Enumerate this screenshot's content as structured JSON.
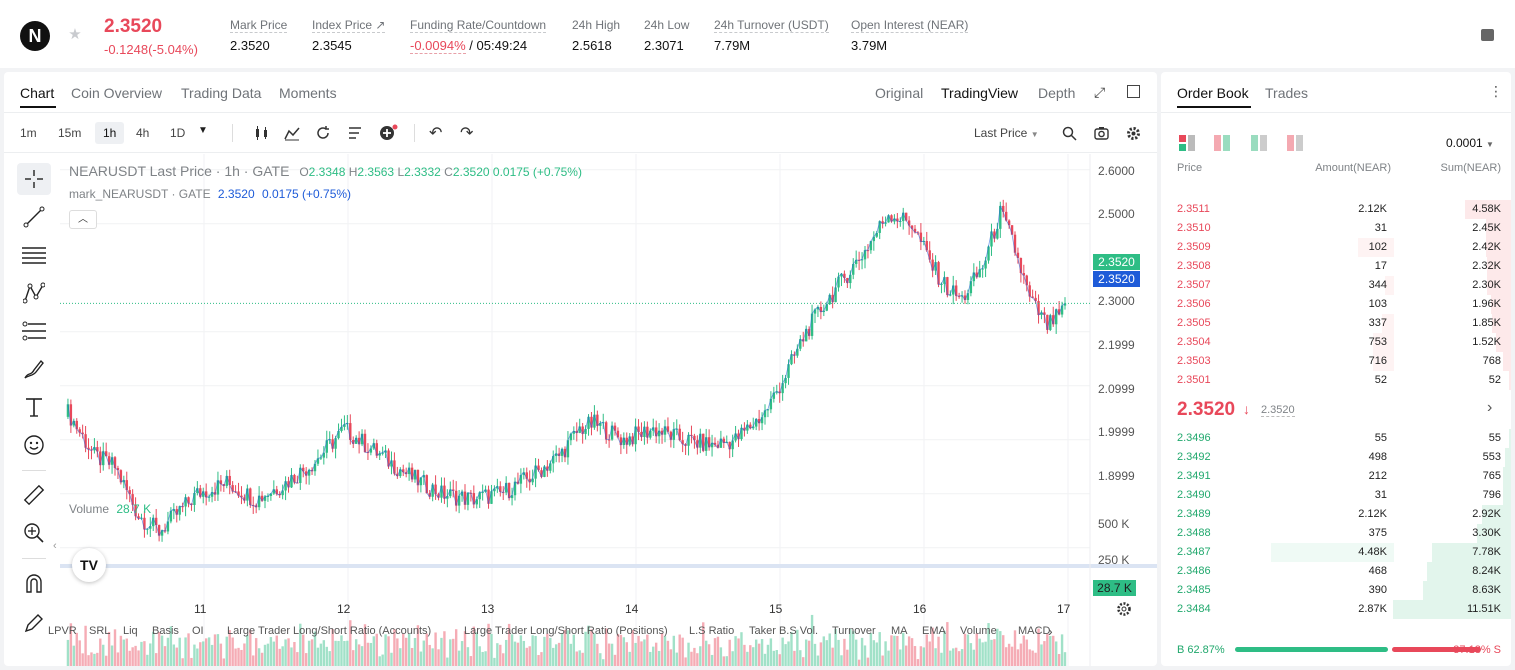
{
  "header": {
    "symbol_logo": "N",
    "last_price": "2.3520",
    "change": "-0.1248(-5.04%)",
    "stats": [
      {
        "label": "Mark Price",
        "value": "2.3520"
      },
      {
        "label": "Index Price ↗",
        "value": "2.3545"
      },
      {
        "label": "Funding Rate/Countdown",
        "value_red": "-0.0094%",
        "value": " / 05:49:24"
      },
      {
        "label": "24h High",
        "value": "2.5618"
      },
      {
        "label": "24h Low",
        "value": "2.3071"
      },
      {
        "label": "24h Turnover (USDT)",
        "value": "7.79M"
      },
      {
        "label": "Open Interest (NEAR)",
        "value": "3.79M"
      }
    ]
  },
  "chart_panel": {
    "tabs": [
      "Chart",
      "Coin Overview",
      "Trading Data",
      "Moments"
    ],
    "views": [
      "Original",
      "TradingView",
      "Depth"
    ],
    "timeframes": [
      "1m",
      "15m",
      "1h",
      "4h",
      "1D"
    ],
    "price_type": "Last Price",
    "legend_main": {
      "title": "NEARUSDT Last Price · 1h · GATE",
      "o_label": "O",
      "o": "2.3348",
      "h_label": "H",
      "h": "2.3563",
      "l_label": "L",
      "l": "2.3332",
      "c_label": "C",
      "c": "2.3520",
      "chg": "0.0175 (+0.75%)"
    },
    "legend_mark": {
      "title": "mark_NEARUSDT · GATE",
      "value": "2.3520",
      "chg": "0.0175 (+0.75%)"
    },
    "volume_label": "Volume",
    "volume_value": "28.7 K",
    "y_labels": [
      "2.6000",
      "2.5000",
      "2.3000",
      "2.1999",
      "2.0999",
      "1.9999",
      "1.8999"
    ],
    "price_tag_green": "2.3520",
    "price_tag_blue": "2.3520",
    "vol_y_labels": [
      "500 K",
      "250 K"
    ],
    "vol_tag": "28.7 K",
    "x_labels": [
      "11",
      "12",
      "13",
      "14",
      "15",
      "16",
      "17"
    ],
    "indicators": [
      "LPVR",
      "SRL",
      "Liq",
      "Basis",
      "OI",
      "Large Trader Long/Short Ratio (Accounts)",
      "Large Trader Long/Short Ratio (Positions)",
      "L.S Ratio",
      "Taker B.S Vol.",
      "Turnover",
      "MA",
      "EMA",
      "Volume",
      "MACD"
    ]
  },
  "chart_data": {
    "type": "candlestick",
    "symbol": "NEARUSDT",
    "interval": "1h",
    "ylim": [
      1.87,
      2.62
    ],
    "x_ticks": [
      "11",
      "12",
      "13",
      "14",
      "15",
      "16",
      "17"
    ],
    "anchors": [
      [
        0,
        2.16
      ],
      [
        10,
        2.07
      ],
      [
        17,
        2.05
      ],
      [
        25,
        1.96
      ],
      [
        32,
        1.93
      ],
      [
        45,
        2.0
      ],
      [
        55,
        2.02
      ],
      [
        65,
        1.99
      ],
      [
        75,
        2.02
      ],
      [
        85,
        2.06
      ],
      [
        95,
        2.12
      ],
      [
        105,
        2.08
      ],
      [
        118,
        2.03
      ],
      [
        128,
        2.0
      ],
      [
        138,
        1.99
      ],
      [
        148,
        2.0
      ],
      [
        158,
        2.03
      ],
      [
        168,
        2.07
      ],
      [
        175,
        2.12
      ],
      [
        180,
        2.13
      ],
      [
        190,
        2.1
      ],
      [
        200,
        2.12
      ],
      [
        210,
        2.1
      ],
      [
        220,
        2.09
      ],
      [
        228,
        2.1
      ],
      [
        238,
        2.15
      ],
      [
        245,
        2.22
      ],
      [
        252,
        2.3
      ],
      [
        258,
        2.35
      ],
      [
        265,
        2.4
      ],
      [
        272,
        2.45
      ],
      [
        280,
        2.52
      ],
      [
        288,
        2.5
      ],
      [
        295,
        2.42
      ],
      [
        300,
        2.38
      ],
      [
        305,
        2.36
      ],
      [
        312,
        2.42
      ],
      [
        318,
        2.52
      ],
      [
        322,
        2.47
      ],
      [
        328,
        2.36
      ],
      [
        334,
        2.31
      ],
      [
        340,
        2.34
      ]
    ],
    "volume_ylim": [
      0,
      650
    ],
    "volume_unit": "K",
    "last_volume": 28.7
  },
  "orderbook": {
    "tabs": [
      "Order Book",
      "Trades"
    ],
    "precision": "0.0001",
    "columns": [
      "Price",
      "Amount(NEAR)",
      "Sum(NEAR)"
    ],
    "asks": [
      {
        "price": "2.3511",
        "amount": "2.12K",
        "sum": "4.58K",
        "depth": 0.39,
        "amt": 0
      },
      {
        "price": "2.3510",
        "amount": "31",
        "sum": "2.45K",
        "depth": 0.21,
        "amt": 0
      },
      {
        "price": "2.3509",
        "amount": "102",
        "sum": "2.42K",
        "depth": 0.21,
        "amt": 0.12
      },
      {
        "price": "2.3508",
        "amount": "17",
        "sum": "2.32K",
        "depth": 0.2,
        "amt": 0
      },
      {
        "price": "2.3507",
        "amount": "344",
        "sum": "2.30K",
        "depth": 0.2,
        "amt": 0.03
      },
      {
        "price": "2.3506",
        "amount": "103",
        "sum": "1.96K",
        "depth": 0.17,
        "amt": 0
      },
      {
        "price": "2.3505",
        "amount": "337",
        "sum": "1.85K",
        "depth": 0.16,
        "amt": 0.04
      },
      {
        "price": "2.3504",
        "amount": "753",
        "sum": "1.52K",
        "depth": 0.13,
        "amt": 0.07
      },
      {
        "price": "2.3503",
        "amount": "716",
        "sum": "768",
        "depth": 0.07,
        "amt": 0.07
      },
      {
        "price": "2.3501",
        "amount": "52",
        "sum": "52",
        "depth": 0.01,
        "amt": 0
      }
    ],
    "mid_price": "2.3520",
    "mid_arrow": "↓",
    "mark_price": "2.3520",
    "bids": [
      {
        "price": "2.3496",
        "amount": "55",
        "sum": "55",
        "depth": 0.01,
        "amt": 0
      },
      {
        "price": "2.3492",
        "amount": "498",
        "sum": "553",
        "depth": 0.05,
        "amt": 0
      },
      {
        "price": "2.3491",
        "amount": "212",
        "sum": "765",
        "depth": 0.07,
        "amt": 0
      },
      {
        "price": "2.3490",
        "amount": "31",
        "sum": "796",
        "depth": 0.07,
        "amt": 0
      },
      {
        "price": "2.3489",
        "amount": "2.12K",
        "sum": "2.92K",
        "depth": 0.25,
        "amt": 0
      },
      {
        "price": "2.3488",
        "amount": "375",
        "sum": "3.30K",
        "depth": 0.29,
        "amt": 0
      },
      {
        "price": "2.3487",
        "amount": "4.48K",
        "sum": "7.78K",
        "depth": 0.67,
        "amt": 0.41
      },
      {
        "price": "2.3486",
        "amount": "468",
        "sum": "8.24K",
        "depth": 0.71,
        "amt": 0
      },
      {
        "price": "2.3485",
        "amount": "390",
        "sum": "8.63K",
        "depth": 0.75,
        "amt": 0
      },
      {
        "price": "2.3484",
        "amount": "2.87K",
        "sum": "11.51K",
        "depth": 1.0,
        "amt": 0
      }
    ],
    "buy_ratio": "B 62.87%",
    "sell_ratio": "37.13% S",
    "buy_fraction": 0.6287
  },
  "colors": {
    "up": "#2ebd85",
    "down": "#e8485a",
    "accent_blue": "#1e5bd8"
  }
}
